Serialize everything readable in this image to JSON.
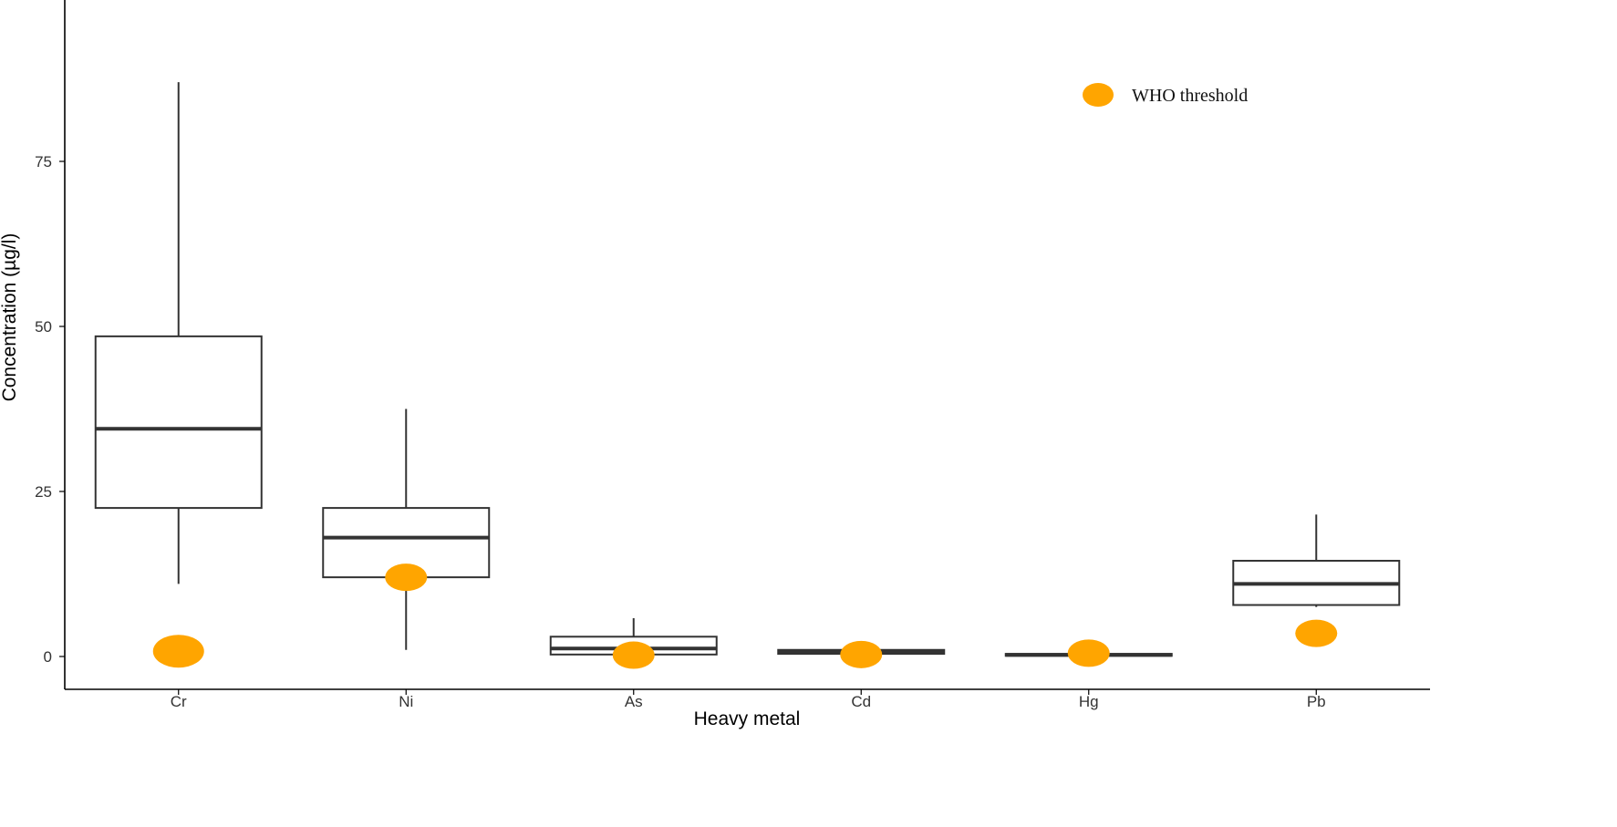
{
  "chart_data": {
    "type": "box",
    "xlabel": "Heavy metal",
    "ylabel": "Concentration (µg/l)",
    "categories": [
      "Cr",
      "Ni",
      "As",
      "Cd",
      "Hg",
      "Pb"
    ],
    "yticks": [
      0,
      25,
      50,
      75
    ],
    "ylim": [
      -4.5,
      100
    ],
    "grid": false,
    "boxes": [
      {
        "category": "Cr",
        "min": 11,
        "q1": 22.5,
        "median": 34.5,
        "q3": 48.5,
        "max": 87
      },
      {
        "category": "Ni",
        "min": 1,
        "q1": 12,
        "median": 18,
        "q3": 22.5,
        "max": 37.5
      },
      {
        "category": "As",
        "min": 0.3,
        "q1": 0.3,
        "median": 1.2,
        "q3": 3,
        "max": 5.8
      },
      {
        "category": "Cd",
        "min": 0.4,
        "q1": 0.4,
        "median": 0.7,
        "q3": 1,
        "max": 1
      },
      {
        "category": "Hg",
        "min": 0.1,
        "q1": 0.1,
        "median": 0.25,
        "q3": 0.4,
        "max": 0.4
      },
      {
        "category": "Pb",
        "min": 7.5,
        "q1": 7.8,
        "median": 11,
        "q3": 14.5,
        "max": 21.5
      }
    ],
    "who_threshold": {
      "label": "WHO threshold",
      "color": "#FFA500",
      "values": [
        {
          "category": "Cr",
          "value": 0.8,
          "size": "large"
        },
        {
          "category": "Ni",
          "value": 12
        },
        {
          "category": "As",
          "value": 0.2
        },
        {
          "category": "Cd",
          "value": 0.3
        },
        {
          "category": "Hg",
          "value": 0.5
        },
        {
          "category": "Pb",
          "value": 3.5
        }
      ]
    },
    "legend_position": "top-right",
    "colors": {
      "box_stroke": "#333333",
      "box_fill": "#ffffff",
      "axis": "#000000"
    }
  }
}
